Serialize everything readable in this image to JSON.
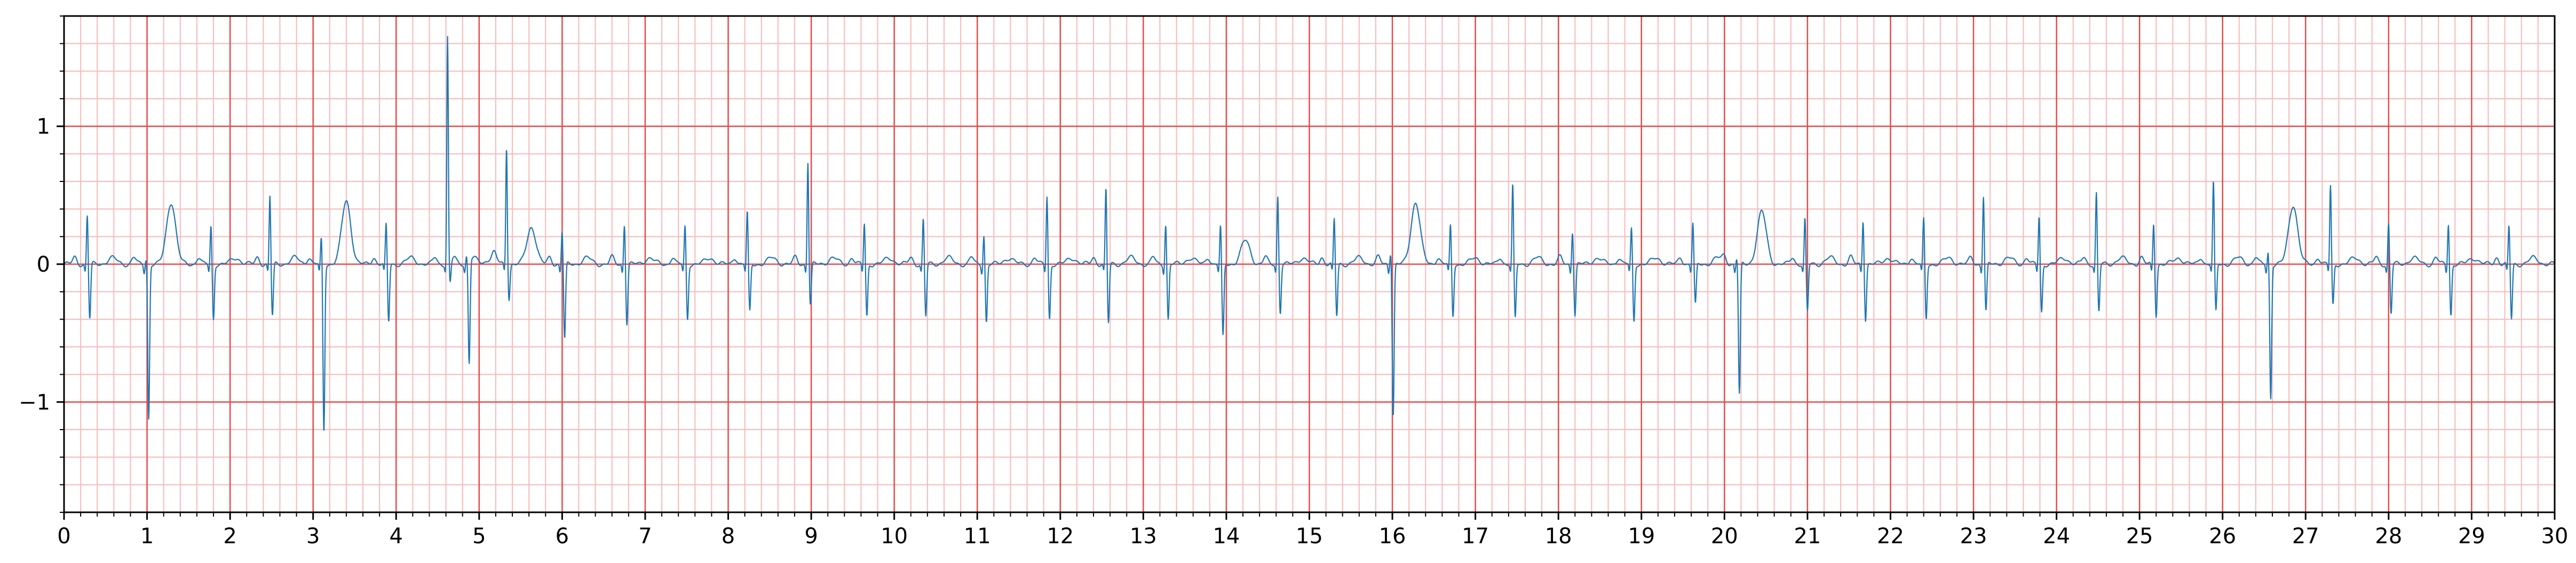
{
  "chart_data": {
    "type": "line",
    "title": "",
    "xlabel": "",
    "ylabel": "",
    "xlim": [
      0,
      30
    ],
    "ylim": [
      -1.8,
      1.8
    ],
    "x_ticks": [
      "0",
      "1",
      "2",
      "3",
      "4",
      "5",
      "6",
      "7",
      "8",
      "9",
      "10",
      "11",
      "12",
      "13",
      "14",
      "15",
      "16",
      "17",
      "18",
      "19",
      "20",
      "21",
      "22",
      "23",
      "24",
      "25",
      "26",
      "27",
      "28",
      "29",
      "30"
    ],
    "y_ticks": [
      {
        "value": 1,
        "label": "1"
      },
      {
        "value": 0,
        "label": "0"
      },
      {
        "value": -1,
        "label": "−1"
      }
    ],
    "grid": {
      "major_x_step": 1,
      "minor_x_step": 0.2,
      "major_y_step": 1,
      "minor_y_step": 0.2,
      "major_color": "#e84a4a",
      "minor_color": "#f7b9b9"
    },
    "line_color": "#1f77b4",
    "series": [
      {
        "name": "",
        "beats": [
          {
            "t": 0.28,
            "r": 0.36,
            "s": -0.4
          },
          {
            "t": 0.99,
            "r": 0.05,
            "s": -1.12,
            "t_wave": 0.45
          },
          {
            "t": 1.77,
            "r": 0.28,
            "s": -0.4
          },
          {
            "t": 2.48,
            "r": 0.5,
            "s": -0.38
          },
          {
            "t": 3.1,
            "r": 0.2,
            "s": -1.22,
            "t_wave": 0.46
          },
          {
            "t": 3.88,
            "r": 0.29,
            "s": -0.42
          },
          {
            "t": 4.62,
            "r": 1.65,
            "s": -0.15
          },
          {
            "t": 4.85,
            "r": 0.05,
            "s": -0.75
          },
          {
            "t": 5.33,
            "r": 0.86,
            "s": -0.25,
            "t_wave": 0.27
          },
          {
            "t": 6.0,
            "r": 0.25,
            "s": -0.55
          },
          {
            "t": 6.75,
            "r": 0.3,
            "s": -0.43
          },
          {
            "t": 7.48,
            "r": 0.28,
            "s": -0.4
          },
          {
            "t": 8.23,
            "r": 0.38,
            "s": -0.35
          },
          {
            "t": 8.96,
            "r": 0.75,
            "s": -0.3
          },
          {
            "t": 9.64,
            "r": 0.3,
            "s": -0.38
          },
          {
            "t": 10.35,
            "r": 0.33,
            "s": -0.38
          },
          {
            "t": 11.08,
            "r": 0.22,
            "s": -0.42
          },
          {
            "t": 11.84,
            "r": 0.5,
            "s": -0.4
          },
          {
            "t": 12.55,
            "r": 0.55,
            "s": -0.43
          },
          {
            "t": 13.27,
            "r": 0.3,
            "s": -0.4
          },
          {
            "t": 13.93,
            "r": 0.28,
            "s": -0.53,
            "t_wave": 0.17
          },
          {
            "t": 14.62,
            "r": 0.5,
            "s": -0.35
          },
          {
            "t": 15.3,
            "r": 0.33,
            "s": -0.38
          },
          {
            "t": 15.98,
            "r": 0.1,
            "s": -1.1,
            "t_wave": 0.45
          },
          {
            "t": 16.7,
            "r": 0.28,
            "s": -0.38
          },
          {
            "t": 17.45,
            "r": 0.58,
            "s": -0.4
          },
          {
            "t": 18.17,
            "r": 0.25,
            "s": -0.37
          },
          {
            "t": 18.88,
            "r": 0.26,
            "s": -0.42
          },
          {
            "t": 19.62,
            "r": 0.3,
            "s": -0.3
          },
          {
            "t": 20.15,
            "r": 0.05,
            "s": -0.95,
            "t_wave": 0.38
          },
          {
            "t": 20.97,
            "r": 0.33,
            "s": -0.35
          },
          {
            "t": 21.67,
            "r": 0.33,
            "s": -0.4
          },
          {
            "t": 22.4,
            "r": 0.33,
            "s": -0.4
          },
          {
            "t": 23.12,
            "r": 0.5,
            "s": -0.35
          },
          {
            "t": 23.79,
            "r": 0.35,
            "s": -0.35
          },
          {
            "t": 24.48,
            "r": 0.52,
            "s": -0.35
          },
          {
            "t": 25.17,
            "r": 0.3,
            "s": -0.37
          },
          {
            "t": 25.89,
            "r": 0.6,
            "s": -0.35
          },
          {
            "t": 26.55,
            "r": 0.1,
            "s": -0.97,
            "t_wave": 0.43
          },
          {
            "t": 27.3,
            "r": 0.57,
            "s": -0.3
          },
          {
            "t": 28.0,
            "r": 0.3,
            "s": -0.36
          },
          {
            "t": 28.72,
            "r": 0.3,
            "s": -0.37
          },
          {
            "t": 29.45,
            "r": 0.28,
            "s": -0.4
          }
        ]
      }
    ]
  }
}
